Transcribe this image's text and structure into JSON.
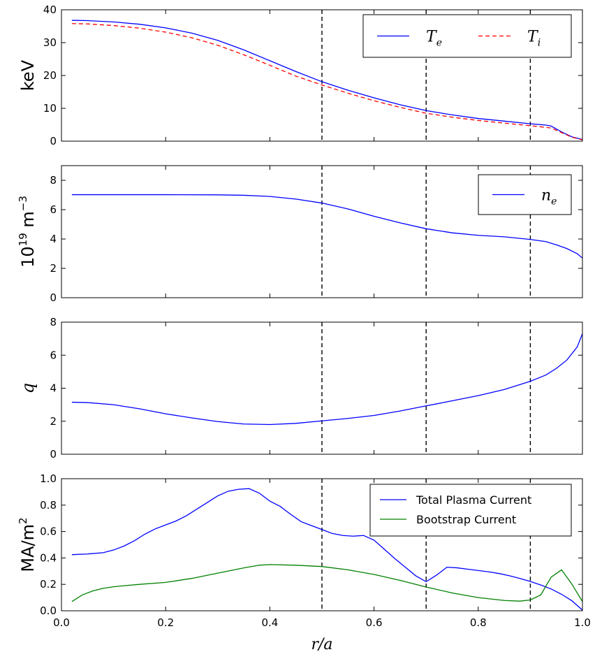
{
  "chart_data": [
    {
      "type": "line",
      "ylabel": "keV",
      "xlim": [
        0.0,
        1.0
      ],
      "ylim": [
        0,
        40
      ],
      "yticks": [
        "0",
        "10",
        "20",
        "30",
        "40"
      ],
      "vlines": [
        0.5,
        0.7,
        0.9
      ],
      "legend": {
        "position": "top-right",
        "columns": 2
      },
      "series": [
        {
          "label": "T",
          "sub": "e",
          "color": "#0000ff",
          "dash": "solid",
          "x": [
            0.02,
            0.05,
            0.1,
            0.15,
            0.2,
            0.25,
            0.3,
            0.35,
            0.4,
            0.45,
            0.5,
            0.55,
            0.6,
            0.65,
            0.7,
            0.75,
            0.8,
            0.85,
            0.9,
            0.93,
            0.94,
            0.96,
            0.98,
            1.0
          ],
          "y": [
            36.8,
            36.7,
            36.3,
            35.6,
            34.5,
            32.9,
            30.7,
            27.8,
            24.5,
            21.2,
            18.1,
            15.5,
            13.2,
            11.1,
            9.3,
            8.0,
            6.9,
            6.1,
            5.3,
            4.9,
            4.6,
            2.8,
            1.3,
            0.5
          ]
        },
        {
          "label": "T",
          "sub": "i",
          "color": "#ff0000",
          "dash": "dashed",
          "x": [
            0.02,
            0.05,
            0.1,
            0.15,
            0.2,
            0.25,
            0.3,
            0.35,
            0.4,
            0.45,
            0.5,
            0.55,
            0.6,
            0.65,
            0.7,
            0.75,
            0.8,
            0.85,
            0.9,
            0.93,
            0.94,
            0.96,
            0.98,
            1.0
          ],
          "y": [
            35.8,
            35.7,
            35.2,
            34.4,
            33.2,
            31.5,
            29.2,
            26.3,
            23.1,
            19.8,
            17.1,
            14.6,
            12.3,
            10.3,
            8.5,
            7.3,
            6.3,
            5.5,
            4.7,
            4.2,
            4.0,
            2.6,
            1.2,
            0.4
          ]
        }
      ]
    },
    {
      "type": "line",
      "ylabel": "10^19 m^-3",
      "ylabel_parts": {
        "base": "10",
        "exp": "19",
        "unit": " m",
        "unit_exp": "−3"
      },
      "xlim": [
        0.0,
        1.0
      ],
      "ylim": [
        0,
        9
      ],
      "yticks": [
        "0",
        "2",
        "4",
        "6",
        "8"
      ],
      "vlines": [
        0.5,
        0.7,
        0.9
      ],
      "legend": {
        "position": "top-right",
        "columns": 1
      },
      "series": [
        {
          "label": "n",
          "sub": "e",
          "color": "#0000ff",
          "dash": "solid",
          "x": [
            0.02,
            0.1,
            0.2,
            0.3,
            0.35,
            0.4,
            0.45,
            0.5,
            0.55,
            0.6,
            0.65,
            0.7,
            0.75,
            0.8,
            0.85,
            0.9,
            0.93,
            0.95,
            0.97,
            0.99,
            1.0
          ],
          "y": [
            7.02,
            7.02,
            7.02,
            7.01,
            6.98,
            6.9,
            6.72,
            6.45,
            6.05,
            5.55,
            5.1,
            4.7,
            4.42,
            4.25,
            4.15,
            3.97,
            3.82,
            3.6,
            3.35,
            3.0,
            2.7
          ]
        }
      ]
    },
    {
      "type": "line",
      "ylabel": "q",
      "xlim": [
        0.0,
        1.0
      ],
      "ylim": [
        0,
        8
      ],
      "yticks": [
        "0",
        "2",
        "4",
        "6",
        "8"
      ],
      "vlines": [
        0.5,
        0.7,
        0.9
      ],
      "series": [
        {
          "color": "#0000ff",
          "dash": "solid",
          "x": [
            0.02,
            0.05,
            0.1,
            0.15,
            0.2,
            0.25,
            0.3,
            0.35,
            0.4,
            0.45,
            0.5,
            0.55,
            0.6,
            0.65,
            0.7,
            0.72,
            0.75,
            0.8,
            0.85,
            0.9,
            0.93,
            0.95,
            0.97,
            0.99,
            1.0
          ],
          "y": [
            3.15,
            3.13,
            3.0,
            2.75,
            2.45,
            2.2,
            1.98,
            1.83,
            1.8,
            1.87,
            2.02,
            2.17,
            2.35,
            2.62,
            2.93,
            3.05,
            3.24,
            3.55,
            3.92,
            4.42,
            4.8,
            5.2,
            5.7,
            6.5,
            7.3
          ]
        }
      ]
    },
    {
      "type": "line",
      "ylabel": "MA/m^2",
      "ylabel_parts": {
        "base": "MA/m",
        "exp": "2"
      },
      "xlabel": "r/a",
      "xlim": [
        0.0,
        1.0
      ],
      "ylim": [
        0,
        1.0
      ],
      "yticks": [
        "0.0",
        "0.2",
        "0.4",
        "0.6",
        "0.8",
        "1.0"
      ],
      "xticks": [
        "0.0",
        "0.2",
        "0.4",
        "0.6",
        "0.8",
        "1.0"
      ],
      "vlines": [
        0.5,
        0.7,
        0.9
      ],
      "legend": {
        "position": "top-right",
        "columns": 1
      },
      "series": [
        {
          "label": "Total Plasma Current",
          "color": "#0000ff",
          "dash": "solid",
          "x": [
            0.02,
            0.05,
            0.08,
            0.1,
            0.12,
            0.14,
            0.16,
            0.18,
            0.2,
            0.22,
            0.24,
            0.26,
            0.28,
            0.3,
            0.32,
            0.34,
            0.36,
            0.38,
            0.4,
            0.42,
            0.44,
            0.46,
            0.48,
            0.5,
            0.52,
            0.54,
            0.56,
            0.58,
            0.6,
            0.62,
            0.64,
            0.66,
            0.68,
            0.7,
            0.72,
            0.74,
            0.76,
            0.78,
            0.8,
            0.82,
            0.84,
            0.86,
            0.88,
            0.9,
            0.92,
            0.94,
            0.96,
            0.98,
            1.0
          ],
          "y": [
            0.425,
            0.43,
            0.44,
            0.46,
            0.49,
            0.53,
            0.58,
            0.62,
            0.65,
            0.68,
            0.72,
            0.77,
            0.82,
            0.87,
            0.905,
            0.92,
            0.925,
            0.89,
            0.83,
            0.79,
            0.73,
            0.675,
            0.645,
            0.615,
            0.585,
            0.57,
            0.565,
            0.57,
            0.535,
            0.465,
            0.395,
            0.33,
            0.265,
            0.22,
            0.27,
            0.33,
            0.325,
            0.315,
            0.305,
            0.295,
            0.282,
            0.265,
            0.245,
            0.222,
            0.195,
            0.165,
            0.125,
            0.075,
            0.005
          ]
        },
        {
          "label": "Bootstrap Current",
          "color": "#008000",
          "dash": "solid",
          "x": [
            0.02,
            0.04,
            0.06,
            0.08,
            0.1,
            0.12,
            0.15,
            0.2,
            0.25,
            0.3,
            0.35,
            0.38,
            0.4,
            0.45,
            0.5,
            0.55,
            0.6,
            0.65,
            0.7,
            0.75,
            0.8,
            0.85,
            0.88,
            0.9,
            0.92,
            0.94,
            0.96,
            0.98,
            1.0
          ],
          "y": [
            0.07,
            0.12,
            0.15,
            0.17,
            0.182,
            0.19,
            0.2,
            0.215,
            0.245,
            0.285,
            0.325,
            0.345,
            0.35,
            0.345,
            0.335,
            0.31,
            0.275,
            0.23,
            0.18,
            0.135,
            0.1,
            0.078,
            0.073,
            0.082,
            0.12,
            0.255,
            0.31,
            0.2,
            0.07
          ]
        }
      ]
    }
  ]
}
